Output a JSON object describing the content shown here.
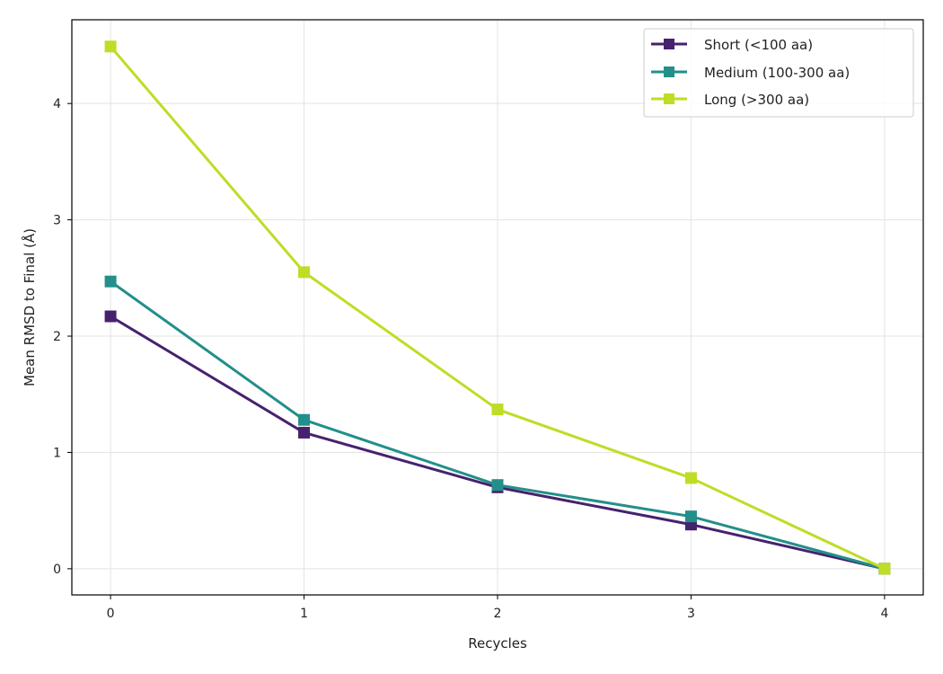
{
  "chart_data": {
    "type": "line",
    "title": "",
    "xlabel": "Recycles",
    "ylabel": "Mean RMSD to Final (Å)",
    "x": [
      0,
      1,
      2,
      3,
      4
    ],
    "x_ticks": [
      "0",
      "1",
      "2",
      "3",
      "4"
    ],
    "y_ticks": [
      "0",
      "1",
      "2",
      "3",
      "4"
    ],
    "xlim": [
      -0.2,
      4.2
    ],
    "ylim": [
      -0.225,
      4.72
    ],
    "grid": true,
    "legend_position": "top-right",
    "marker": "square",
    "series": [
      {
        "name": "Short (<100 aa)",
        "color": "#46226e",
        "values": [
          2.17,
          1.17,
          0.7,
          0.38,
          0.0
        ]
      },
      {
        "name": "Medium (100-300 aa)",
        "color": "#238f8a",
        "values": [
          2.47,
          1.28,
          0.72,
          0.45,
          0.0
        ]
      },
      {
        "name": "Long (>300 aa)",
        "color": "#bedd26",
        "values": [
          4.49,
          2.55,
          1.37,
          0.78,
          0.0
        ]
      }
    ]
  }
}
